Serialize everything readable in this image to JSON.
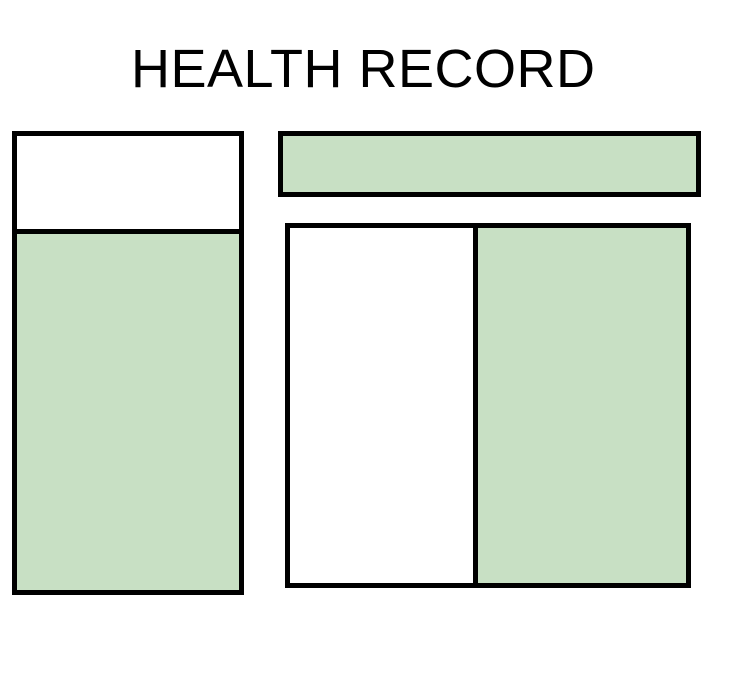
{
  "title": "HEALTH RECORD",
  "colors": {
    "fill_green": "#c8e0c4",
    "fill_white": "#ffffff",
    "border": "#000000"
  },
  "blocks": {
    "left_header": {
      "fill": "white"
    },
    "left_body": {
      "fill": "green"
    },
    "top_bar": {
      "fill": "green"
    },
    "panel_left": {
      "fill": "white"
    },
    "panel_right": {
      "fill": "green"
    }
  }
}
